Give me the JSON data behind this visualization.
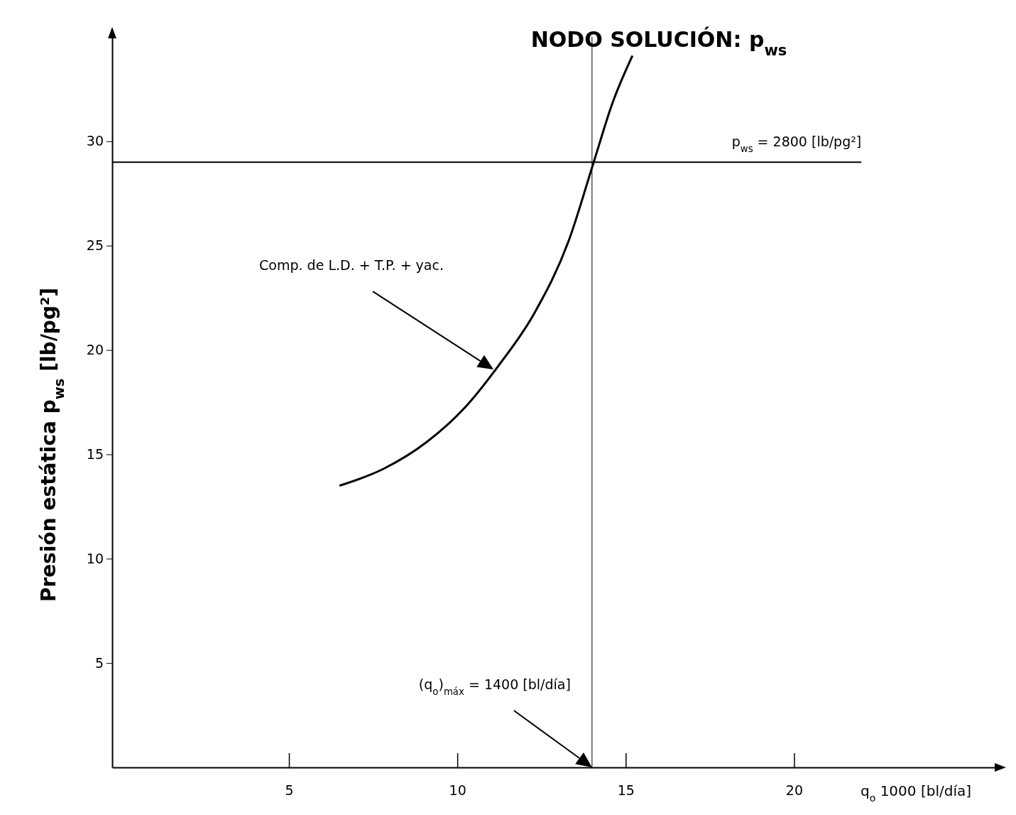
{
  "chart_data": {
    "type": "line",
    "title": "NODO SOLUCIÓN: p$_{ws}$",
    "xlabel": "q$_{o}$ 1000 [bl/día]",
    "ylabel": "Presión estática p$_{ws}$ [lb/pg²]",
    "x": [
      6.5,
      7.8,
      9.1,
      10.2,
      11.2,
      12.3,
      13.3,
      14.05,
      14.6,
      15.2
    ],
    "series": [
      {
        "color": "#000000",
        "values": [
          13.5,
          14.3,
          15.6,
          17.2,
          19.2,
          21.8,
          25.2,
          29.0,
          31.8,
          34.1
        ]
      }
    ],
    "xlim": [
      -0.25,
      26
    ],
    "ylim": [
      0,
      35
    ],
    "xticks": [
      5,
      10,
      15,
      20
    ],
    "yticks": [
      5,
      10,
      15,
      20,
      25,
      30
    ],
    "ref_lines": [
      {
        "axis": "y",
        "value": 29,
        "color": "#000000"
      },
      {
        "axis": "x",
        "value": 14,
        "color": "#000000"
      }
    ],
    "annotations": [
      "Comp. de L.D. + T.P. + yac.",
      "p$_{ws}$ = 2800 [lb/pg²]",
      "(q$_{o}$)$_{máx}$ = 1400 [bl/día]"
    ],
    "grid": false,
    "marker": "none",
    "line_style": "solid"
  }
}
